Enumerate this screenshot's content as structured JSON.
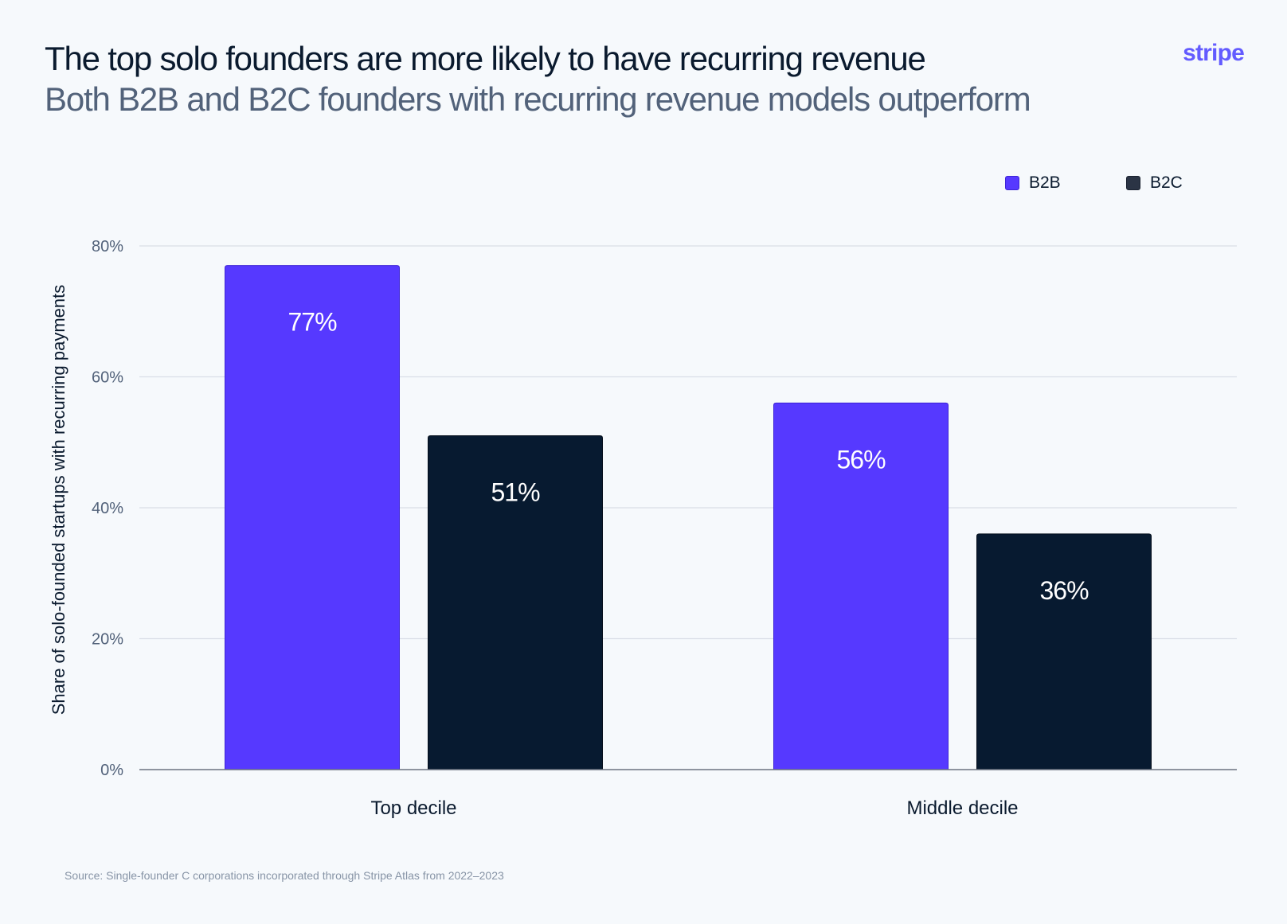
{
  "header": {
    "title": "The top solo founders are more likely to have recurring revenue",
    "subtitle": "Both B2B and B2C founders with recurring revenue models outperform",
    "brand": "stripe"
  },
  "footer": {
    "source": "Source: Single-founder C corporations incorporated through Stripe Atlas from 2022–2023"
  },
  "colors": {
    "b2b": "#5639ff",
    "b2c": "#071a30",
    "grid": "#d9dee6",
    "axis": "#6b7280",
    "bar_label": "#ffffff",
    "tick_text": "#52627a",
    "category_text": "#0a1a2e",
    "brand": "#635bff"
  },
  "chart_data": {
    "type": "bar",
    "categories": [
      "Top decile",
      "Middle decile"
    ],
    "series": [
      {
        "name": "B2B",
        "values": [
          77,
          56
        ],
        "labels": [
          "77%",
          "56%"
        ]
      },
      {
        "name": "B2C",
        "values": [
          51,
          36
        ],
        "labels": [
          "51%",
          "36%"
        ]
      }
    ],
    "ylabel": "Share of solo-founded startups with recurring payments",
    "ylim": [
      0,
      80
    ],
    "yticks": [
      0,
      20,
      40,
      60,
      80
    ],
    "ytick_labels": [
      "0%",
      "20%",
      "40%",
      "60%",
      "80%"
    ],
    "grid": true,
    "legend_position": "top-right"
  }
}
